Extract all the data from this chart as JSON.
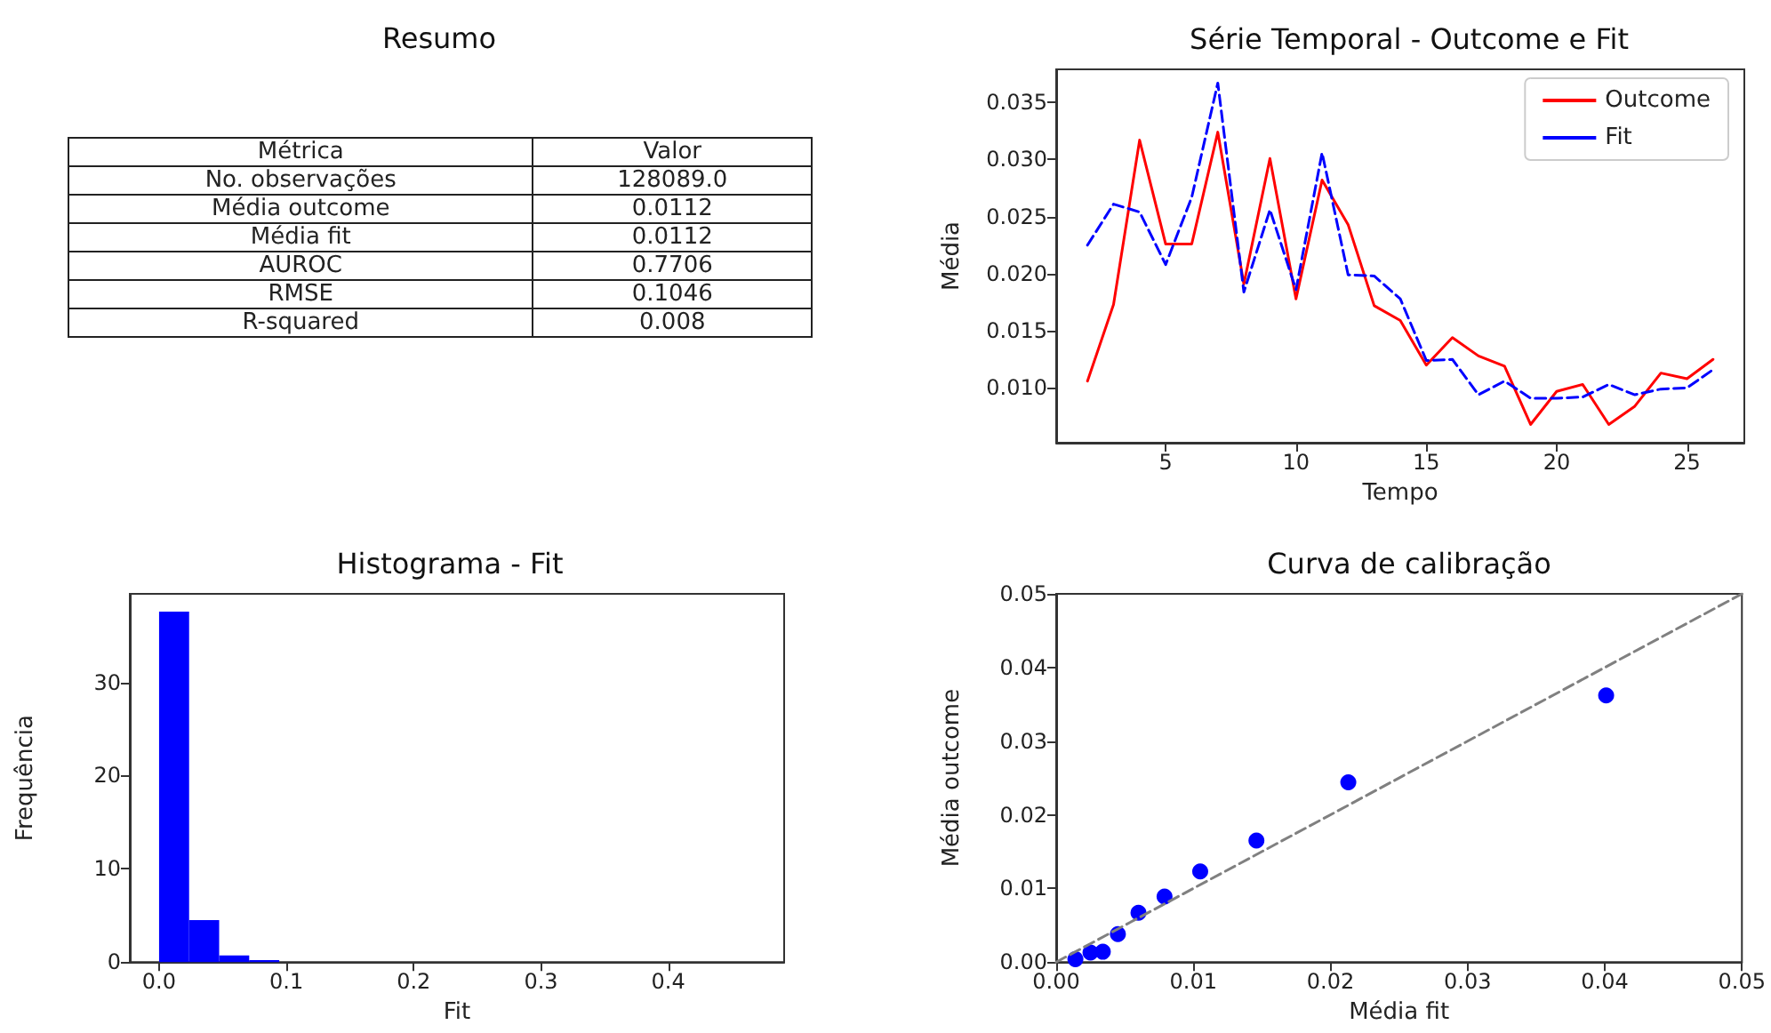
{
  "chart_data": [
    {
      "type": "other",
      "title": "Resumo",
      "annotations": [
        "Métrica",
        "Valor",
        "No. observações",
        "128089.0",
        "Média outcome",
        "0.0112",
        "Média fit",
        "0.0112",
        "AUROC",
        "0.7706",
        "RMSE",
        "0.1046",
        "R-squared",
        "0.008"
      ]
    },
    {
      "type": "line",
      "title": "Série Temporal - Outcome e Fit",
      "xlabel": "Tempo",
      "ylabel": "Média",
      "x": [
        2,
        3,
        4,
        5,
        6,
        7,
        8,
        9,
        10,
        11,
        12,
        13,
        14,
        15,
        16,
        17,
        18,
        19,
        20,
        21,
        22,
        23,
        24,
        25,
        26
      ],
      "series": [
        {
          "name": "Outcome",
          "color": "#ff0000",
          "line_style": "solid",
          "values": [
            0.0106,
            0.0173,
            0.0317,
            0.0226,
            0.0226,
            0.0324,
            0.0191,
            0.0301,
            0.0178,
            0.0282,
            0.0243,
            0.0172,
            0.0159,
            0.012,
            0.0144,
            0.0128,
            0.0119,
            0.0068,
            0.0097,
            0.0103,
            0.0068,
            0.0084,
            0.0113,
            0.0108,
            0.0125
          ]
        },
        {
          "name": "Fit",
          "color": "#0000ff",
          "line_style": "dashed",
          "values": [
            0.0225,
            0.0261,
            0.0254,
            0.0208,
            0.0267,
            0.0367,
            0.0184,
            0.0256,
            0.0186,
            0.0306,
            0.0199,
            0.0198,
            0.0178,
            0.0124,
            0.0125,
            0.0094,
            0.0106,
            0.0091,
            0.0091,
            0.0092,
            0.0103,
            0.0094,
            0.0099,
            0.01,
            0.0116
          ]
        }
      ],
      "xlim": [
        0.8,
        27.2
      ],
      "ylim": [
        0.0052,
        0.0379
      ],
      "xticks": [
        5,
        10,
        15,
        20,
        25
      ],
      "yticks": [
        {
          "value": 0.01,
          "label": "0.010"
        },
        0.015,
        {
          "value": 0.02,
          "label": "0.020"
        },
        0.025,
        {
          "value": 0.03,
          "label": "0.030"
        },
        0.035
      ],
      "legend": "top right",
      "marker": "none"
    },
    {
      "type": "histogram",
      "title": "Histograma - Fit",
      "xlabel": "Fit",
      "ylabel": "Frequência",
      "color": "#0000ff",
      "bins": [
        0,
        0.0236,
        0.0472,
        0.0708,
        0.0944,
        0.118,
        0.1416,
        0.1652,
        0.1888,
        0.2124,
        0.236,
        0.2596,
        0.2832,
        0.3068,
        0.3304,
        0.354,
        0.3776,
        0.4012,
        0.4248,
        0.4484,
        0.472
      ],
      "values": [
        37.6,
        4.5,
        0.7,
        0.2,
        0,
        0,
        0,
        0,
        0,
        0,
        0,
        0,
        0,
        0,
        0,
        0,
        0,
        0,
        0,
        0
      ],
      "xlim": [
        -0.023,
        0.491
      ],
      "ylim": [
        0,
        39.5
      ],
      "xticks": [
        {
          "value": 0,
          "label": "0.0"
        },
        0.1,
        0.2,
        0.3,
        0.4
      ],
      "yticks": [
        0,
        10,
        20,
        30
      ]
    },
    {
      "type": "scatter",
      "title": "Curva de calibração",
      "xlabel": "Média fit",
      "ylabel": "Média outcome",
      "series": [
        {
          "type": "scatter",
          "color": "#0000ff",
          "marker": "circle",
          "x": [
            0.0014,
            0.0025,
            0.0034,
            0.0045,
            0.006,
            0.0079,
            0.0105,
            0.0146,
            0.0213,
            0.0401
          ],
          "values": [
            0.0004,
            0.0013,
            0.0014,
            0.0038,
            0.0067,
            0.0089,
            0.0123,
            0.0165,
            0.0244,
            0.0362
          ]
        },
        {
          "type": "line",
          "color": "#808080",
          "line_style": "dashed",
          "marker": "none",
          "x": [
            0,
            0.05
          ],
          "values": [
            0,
            0.05
          ]
        }
      ],
      "xlim": [
        0,
        0.05
      ],
      "ylim": [
        0,
        0.05
      ],
      "xticks": [
        {
          "value": 0,
          "label": "0.00"
        },
        0.01,
        0.02,
        0.03,
        0.04,
        0.05
      ],
      "yticks": [
        {
          "value": 0,
          "label": "0.00"
        },
        0.01,
        0.02,
        0.03,
        0.04,
        0.05
      ]
    }
  ]
}
